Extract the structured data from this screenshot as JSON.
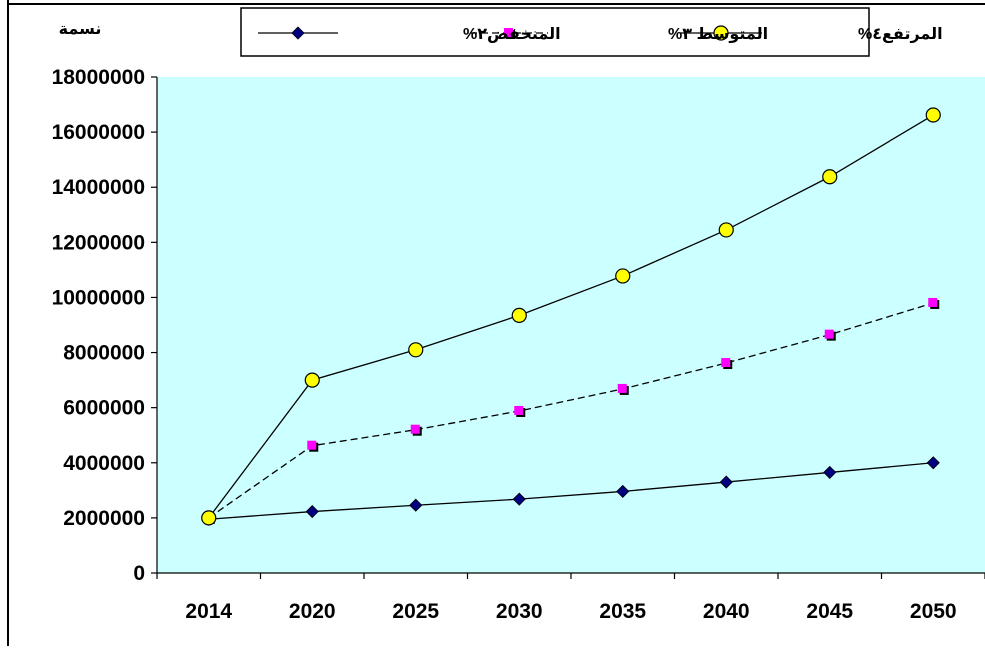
{
  "chart_data": {
    "type": "line",
    "ylabel": "نسمة",
    "categories": [
      "2014",
      "2020",
      "2025",
      "2030",
      "2035",
      "2040",
      "2045",
      "2050"
    ],
    "ylim": [
      0,
      18000000
    ],
    "yticks": [
      0,
      2000000,
      4000000,
      6000000,
      8000000,
      10000000,
      12000000,
      14000000,
      16000000,
      18000000
    ],
    "grid": false,
    "legend_position": "top",
    "plot_background": "#ccffff",
    "series": [
      {
        "name": "المرتفع٤%",
        "values": [
          2000000,
          7000000,
          8100000,
          9350000,
          10780000,
          12450000,
          14380000,
          16620000
        ],
        "color": "#000000",
        "marker_fill": "#ffff00",
        "marker": "circle",
        "dash": "solid"
      },
      {
        "name": "المتوسط ٣%",
        "values": [
          2000000,
          4620000,
          5200000,
          5880000,
          6680000,
          7620000,
          8650000,
          9800000
        ],
        "color": "#000000",
        "marker_fill": "#ff00ff",
        "marker": "square",
        "dash": "dashed"
      },
      {
        "name": "المنخفض٢%",
        "values": [
          1950000,
          2230000,
          2460000,
          2680000,
          2960000,
          3300000,
          3650000,
          4000000
        ],
        "color": "#000000",
        "marker_fill": "#000080",
        "marker": "diamond",
        "dash": "solid"
      }
    ]
  }
}
